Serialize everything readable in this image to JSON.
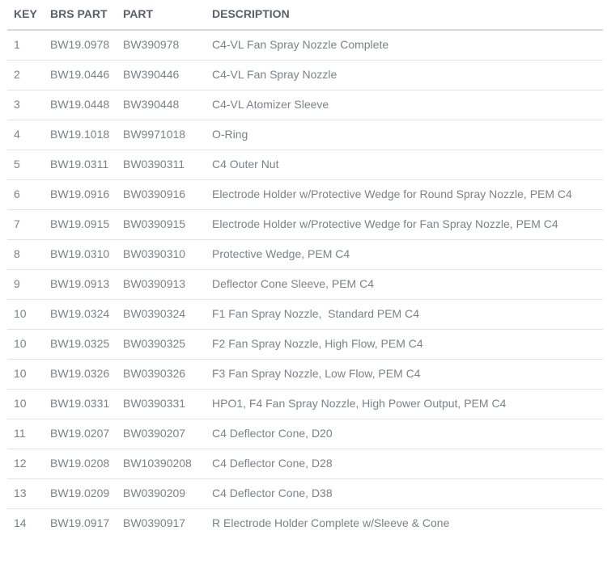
{
  "colors": {
    "header_text": "#5b6066",
    "body_text": "#7e8285",
    "header_border": "#d9d9d9",
    "row_border": "#e4e4e4",
    "background": "#ffffff"
  },
  "table": {
    "columns": [
      {
        "key": "key",
        "label": "KEY"
      },
      {
        "key": "brs_part",
        "label": "BRS PART"
      },
      {
        "key": "part",
        "label": "PART"
      },
      {
        "key": "description",
        "label": "DESCRIPTION"
      }
    ],
    "rows": [
      {
        "key": "1",
        "brs_part": "BW19.0978",
        "part": "BW390978",
        "description": "C4-VL Fan Spray Nozzle Complete"
      },
      {
        "key": "2",
        "brs_part": "BW19.0446",
        "part": "BW390446",
        "description": "C4-VL Fan Spray Nozzle"
      },
      {
        "key": "3",
        "brs_part": "BW19.0448",
        "part": "BW390448",
        "description": "C4-VL Atomizer Sleeve"
      },
      {
        "key": "4",
        "brs_part": "BW19.1018",
        "part": "BW9971018",
        "description": "O-Ring"
      },
      {
        "key": "5",
        "brs_part": "BW19.0311",
        "part": "BW0390311",
        "description": "C4 Outer Nut"
      },
      {
        "key": "6",
        "brs_part": "BW19.0916",
        "part": "BW0390916",
        "description": "Electrode Holder w/Protective Wedge for Round Spray Nozzle, PEM C4"
      },
      {
        "key": "7",
        "brs_part": "BW19.0915",
        "part": "BW0390915",
        "description": "Electrode Holder w/Protective Wedge for Fan Spray Nozzle, PEM C4"
      },
      {
        "key": "8",
        "brs_part": "BW19.0310",
        "part": "BW0390310",
        "description": "Protective Wedge, PEM C4"
      },
      {
        "key": "9",
        "brs_part": "BW19.0913",
        "part": "BW0390913",
        "description": "Deflector Cone Sleeve, PEM C4"
      },
      {
        "key": "10",
        "brs_part": "BW19.0324",
        "part": "BW0390324",
        "description": "F1 Fan Spray Nozzle,  Standard PEM C4"
      },
      {
        "key": "10",
        "brs_part": "BW19.0325",
        "part": "BW0390325",
        "description": "F2 Fan Spray Nozzle, High Flow, PEM C4"
      },
      {
        "key": "10",
        "brs_part": "BW19.0326",
        "part": "BW0390326",
        "description": "F3 Fan Spray Nozzle, Low Flow, PEM C4"
      },
      {
        "key": "10",
        "brs_part": "BW19.0331",
        "part": "BW0390331",
        "description": "HPO1, F4 Fan Spray Nozzle, High Power Output, PEM C4"
      },
      {
        "key": "11",
        "brs_part": "BW19.0207",
        "part": "BW0390207",
        "description": "C4 Deflector Cone, D20"
      },
      {
        "key": "12",
        "brs_part": "BW19.0208",
        "part": "BW10390208",
        "description": "C4 Deflector Cone, D28"
      },
      {
        "key": "13",
        "brs_part": "BW19.0209",
        "part": "BW0390209",
        "description": "C4 Deflector Cone, D38"
      },
      {
        "key": "14",
        "brs_part": "BW19.0917",
        "part": "BW0390917",
        "description": "R Electrode Holder Complete w/Sleeve & Cone"
      }
    ]
  }
}
